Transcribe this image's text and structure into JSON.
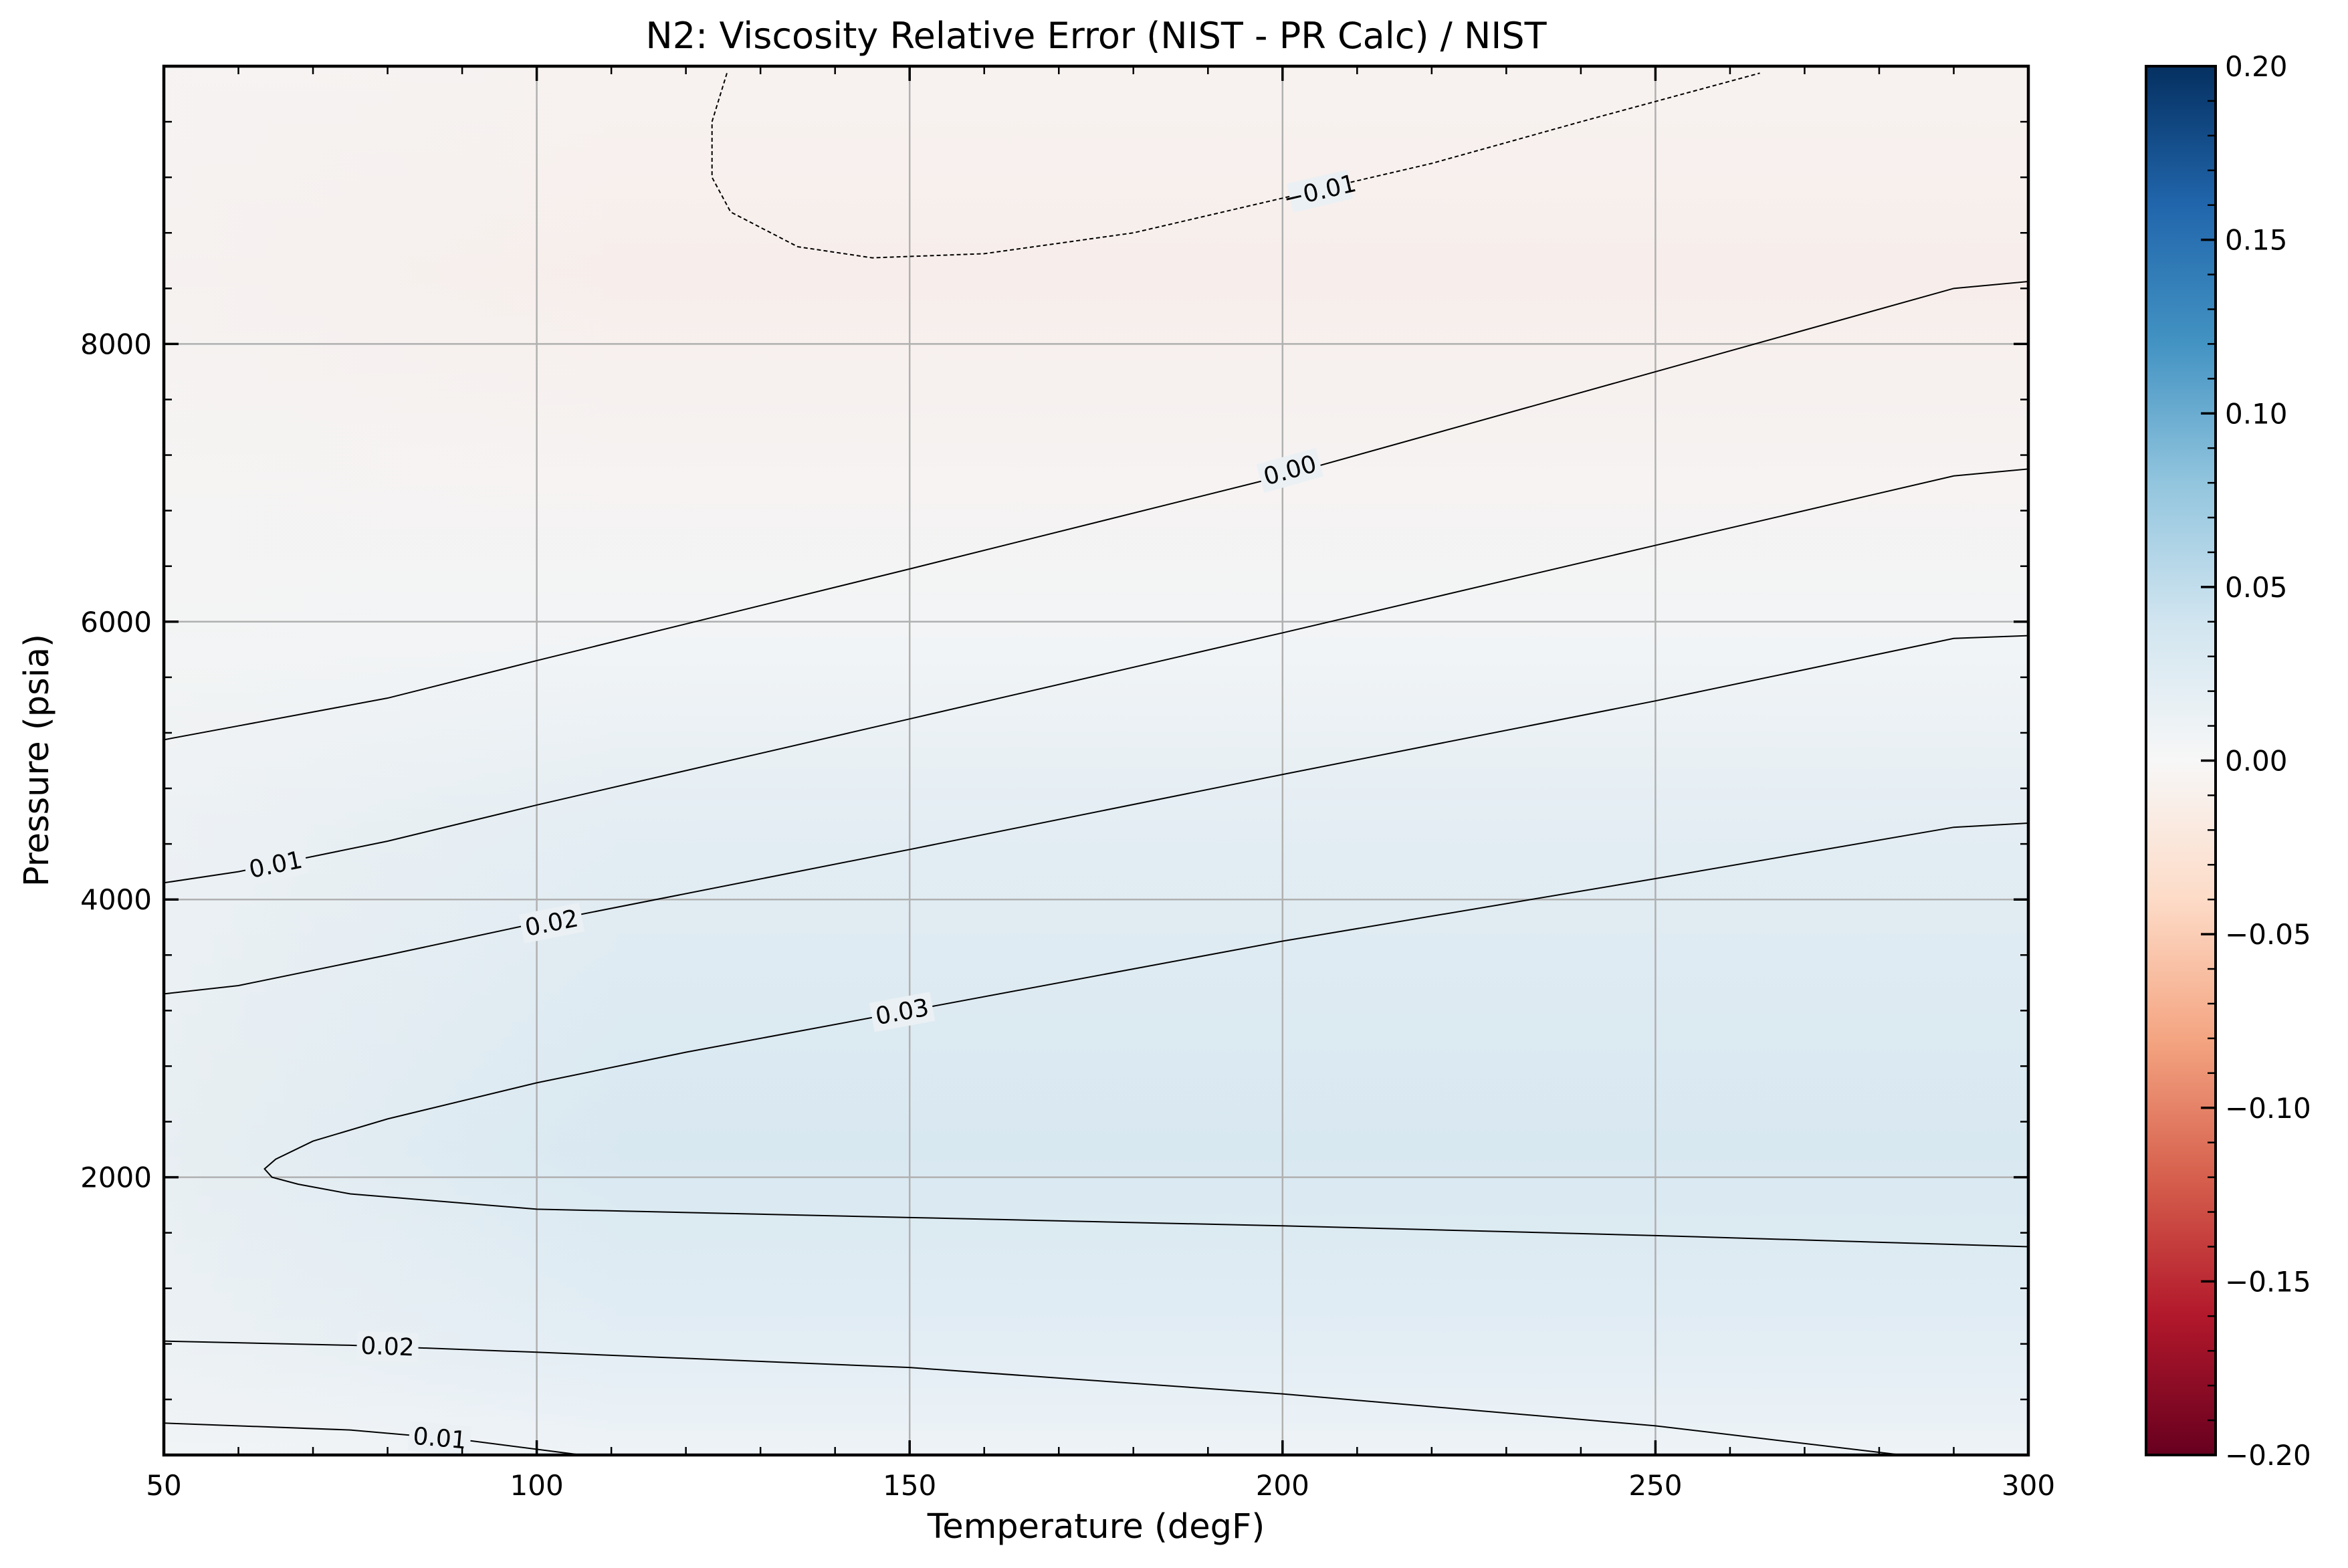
{
  "chart_data": {
    "type": "heatmap",
    "title": "N2: Viscosity Relative Error (NIST - PR Calc) / NIST",
    "xlabel": "Temperature (degF)",
    "ylabel": "Pressure (psia)",
    "xlim": [
      50,
      300
    ],
    "ylim": [
      0,
      10000
    ],
    "xticks": [
      50,
      100,
      150,
      200,
      250,
      300
    ],
    "xtick_labels": [
      "50",
      "100",
      "150",
      "200",
      "250",
      "300"
    ],
    "yticks": [
      2000,
      4000,
      6000,
      8000
    ],
    "ytick_labels": [
      "2000",
      "4000",
      "6000",
      "8000"
    ],
    "grid": true,
    "colorbar": {
      "colormap": "RdBu",
      "vmin": -0.2,
      "vmax": 0.2,
      "ticks": [
        0.2,
        0.15,
        0.1,
        0.05,
        0.0,
        -0.05,
        -0.1,
        -0.15,
        -0.2
      ],
      "tick_labels": [
        "0.20",
        "0.15",
        "0.10",
        "0.05",
        "0.00",
        "−0.05",
        "−0.10",
        "−0.15",
        "−0.20"
      ]
    },
    "contours": [
      {
        "level": -0.01,
        "label": "−0.01",
        "style": "dashed",
        "label_at": [
          205,
          9100
        ],
        "points": [
          [
            125.5,
            9950
          ],
          [
            123.5,
            9600
          ],
          [
            123.5,
            9200
          ],
          [
            126,
            8950
          ],
          [
            135,
            8700
          ],
          [
            145,
            8620
          ],
          [
            160,
            8650
          ],
          [
            180,
            8800
          ],
          [
            200,
            9050
          ],
          [
            220,
            9300
          ],
          [
            240,
            9600
          ],
          [
            264,
            9950
          ]
        ]
      },
      {
        "level": 0.0,
        "label": "0.00",
        "style": "solid",
        "label_at": [
          201,
          7090
        ],
        "points": [
          [
            50,
            5150
          ],
          [
            60,
            5250
          ],
          [
            80,
            5450
          ],
          [
            100,
            5720
          ],
          [
            150,
            6380
          ],
          [
            200,
            7050
          ],
          [
            250,
            7800
          ],
          [
            290,
            8400
          ],
          [
            300,
            8450
          ]
        ]
      },
      {
        "level": 0.01,
        "label": "0.01",
        "style": "solid",
        "label_at": [
          65,
          4250
        ],
        "points": [
          [
            50,
            4120
          ],
          [
            60,
            4200
          ],
          [
            80,
            4420
          ],
          [
            100,
            4680
          ],
          [
            150,
            5300
          ],
          [
            200,
            5920
          ],
          [
            250,
            6550
          ],
          [
            290,
            7050
          ],
          [
            300,
            7100
          ]
        ]
      },
      {
        "level": 0.02,
        "label": "0.02",
        "style": "solid",
        "label_at": [
          102,
          3830
        ],
        "points": [
          [
            50,
            3320
          ],
          [
            60,
            3380
          ],
          [
            80,
            3600
          ],
          [
            100,
            3830
          ],
          [
            150,
            4360
          ],
          [
            200,
            4900
          ],
          [
            250,
            5430
          ],
          [
            290,
            5880
          ],
          [
            300,
            5900
          ]
        ]
      },
      {
        "level": 0.03,
        "label": "0.03",
        "style": "solid",
        "label_at": [
          149,
          3190
        ],
        "points": [
          [
            300,
            4550
          ],
          [
            290,
            4520
          ],
          [
            250,
            4150
          ],
          [
            200,
            3700
          ],
          [
            150,
            3200
          ],
          [
            120,
            2900
          ],
          [
            100,
            2680
          ],
          [
            80,
            2420
          ],
          [
            70,
            2260
          ],
          [
            65,
            2130
          ],
          [
            63.5,
            2060
          ],
          [
            64.5,
            2000
          ],
          [
            68,
            1950
          ],
          [
            75,
            1880
          ],
          [
            100,
            1770
          ],
          [
            150,
            1710
          ],
          [
            200,
            1650
          ],
          [
            250,
            1580
          ],
          [
            300,
            1500
          ]
        ]
      },
      {
        "level": 0.02,
        "label": "0.02",
        "style": "solid",
        "label_at": [
          80,
          780
        ],
        "points": [
          [
            50,
            820
          ],
          [
            75,
            790
          ],
          [
            100,
            740
          ],
          [
            150,
            630
          ],
          [
            200,
            440
          ],
          [
            250,
            210
          ],
          [
            283,
            0
          ]
        ]
      },
      {
        "level": 0.01,
        "label": "0.01",
        "style": "solid",
        "label_at": [
          87,
          120
        ],
        "points": [
          [
            50,
            230
          ],
          [
            75,
            180
          ],
          [
            90,
            110
          ],
          [
            106,
            0
          ]
        ]
      }
    ]
  }
}
